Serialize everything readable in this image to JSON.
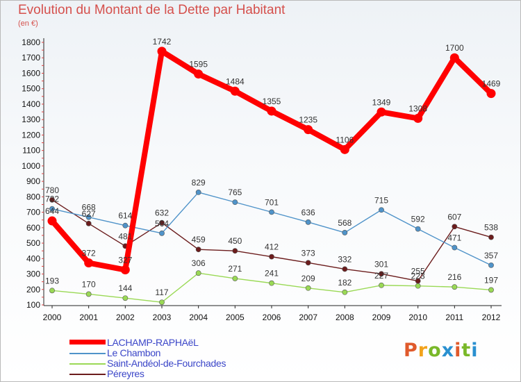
{
  "title": "Evolution du Montant de la Dette par Habitant",
  "unit": "(en €)",
  "logo": {
    "text": "Proxiti",
    "colors": [
      "#e05a2c",
      "#f2a21b",
      "#79b829",
      "#2a90d0",
      "#e05a2c",
      "#79b829",
      "#2a90d0"
    ]
  },
  "chart_data": {
    "type": "line",
    "x": [
      "2000",
      "2001",
      "2002",
      "2003",
      "2004",
      "2005",
      "2006",
      "2007",
      "2008",
      "2009",
      "2010",
      "2011",
      "2012"
    ],
    "ylim": [
      100,
      1800
    ],
    "yticks": [
      100,
      200,
      300,
      400,
      500,
      600,
      700,
      800,
      900,
      1000,
      1100,
      1200,
      1300,
      1400,
      1500,
      1600,
      1700,
      1800
    ],
    "grid": false,
    "legend_position": "bottom-left",
    "series": [
      {
        "name": "LACHAMP-RAPHAëL",
        "color": "#ff0000",
        "values": [
          644,
          372,
          327,
          1742,
          1595,
          1484,
          1355,
          1235,
          1106,
          1349,
          1308,
          1700,
          1469
        ]
      },
      {
        "name": "Le Chambon",
        "color": "#4f93c9",
        "values": [
          722,
          668,
          614,
          564,
          829,
          765,
          701,
          636,
          568,
          715,
          592,
          471,
          357
        ]
      },
      {
        "name": "Saint-Andéol-de-Fourchades",
        "color": "#9ad955",
        "values": [
          193,
          170,
          144,
          117,
          306,
          271,
          241,
          209,
          182,
          227,
          223,
          216,
          197
        ]
      },
      {
        "name": "Péreyres",
        "color": "#6b1c1c",
        "values": [
          780,
          627,
          481,
          632,
          459,
          450,
          412,
          373,
          332,
          301,
          255,
          607,
          538
        ]
      }
    ]
  }
}
